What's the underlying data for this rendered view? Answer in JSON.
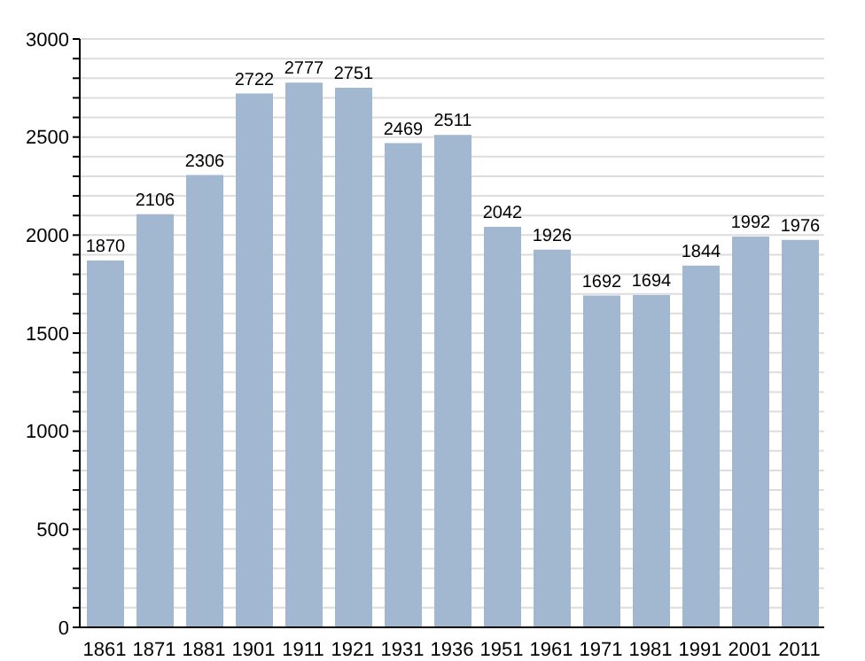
{
  "chart_data": {
    "type": "bar",
    "categories": [
      "1861",
      "1871",
      "1881",
      "1901",
      "1911",
      "1921",
      "1931",
      "1936",
      "1951",
      "1961",
      "1971",
      "1981",
      "1991",
      "2001",
      "2011"
    ],
    "values": [
      1870,
      2106,
      2306,
      2722,
      2777,
      2751,
      2469,
      2511,
      2042,
      1926,
      1692,
      1694,
      1844,
      1992,
      1976
    ],
    "color": "#a2b8d1",
    "data_labels": true,
    "grid": "y",
    "ylim": [
      0,
      3000
    ],
    "yticks": [
      0,
      {
        "value": 100,
        "label": null
      },
      {
        "value": 200,
        "label": null
      },
      {
        "value": 300,
        "label": null
      },
      {
        "value": 400,
        "label": null
      },
      500,
      {
        "value": 600,
        "label": null
      },
      {
        "value": 700,
        "label": null
      },
      {
        "value": 800,
        "label": null
      },
      {
        "value": 900,
        "label": null
      },
      1000,
      {
        "value": 1100,
        "label": null
      },
      {
        "value": 1200,
        "label": null
      },
      {
        "value": 1300,
        "label": null
      },
      {
        "value": 1400,
        "label": null
      },
      1500,
      {
        "value": 1600,
        "label": null
      },
      {
        "value": 1700,
        "label": null
      },
      {
        "value": 1800,
        "label": null
      },
      {
        "value": 1900,
        "label": null
      },
      2000,
      {
        "value": 2100,
        "label": null
      },
      {
        "value": 2200,
        "label": null
      },
      {
        "value": 2300,
        "label": null
      },
      {
        "value": 2400,
        "label": null
      },
      2500,
      {
        "value": 2600,
        "label": null
      },
      {
        "value": 2700,
        "label": null
      },
      {
        "value": 2800,
        "label": null
      },
      {
        "value": 2900,
        "label": null
      },
      3000
    ]
  }
}
